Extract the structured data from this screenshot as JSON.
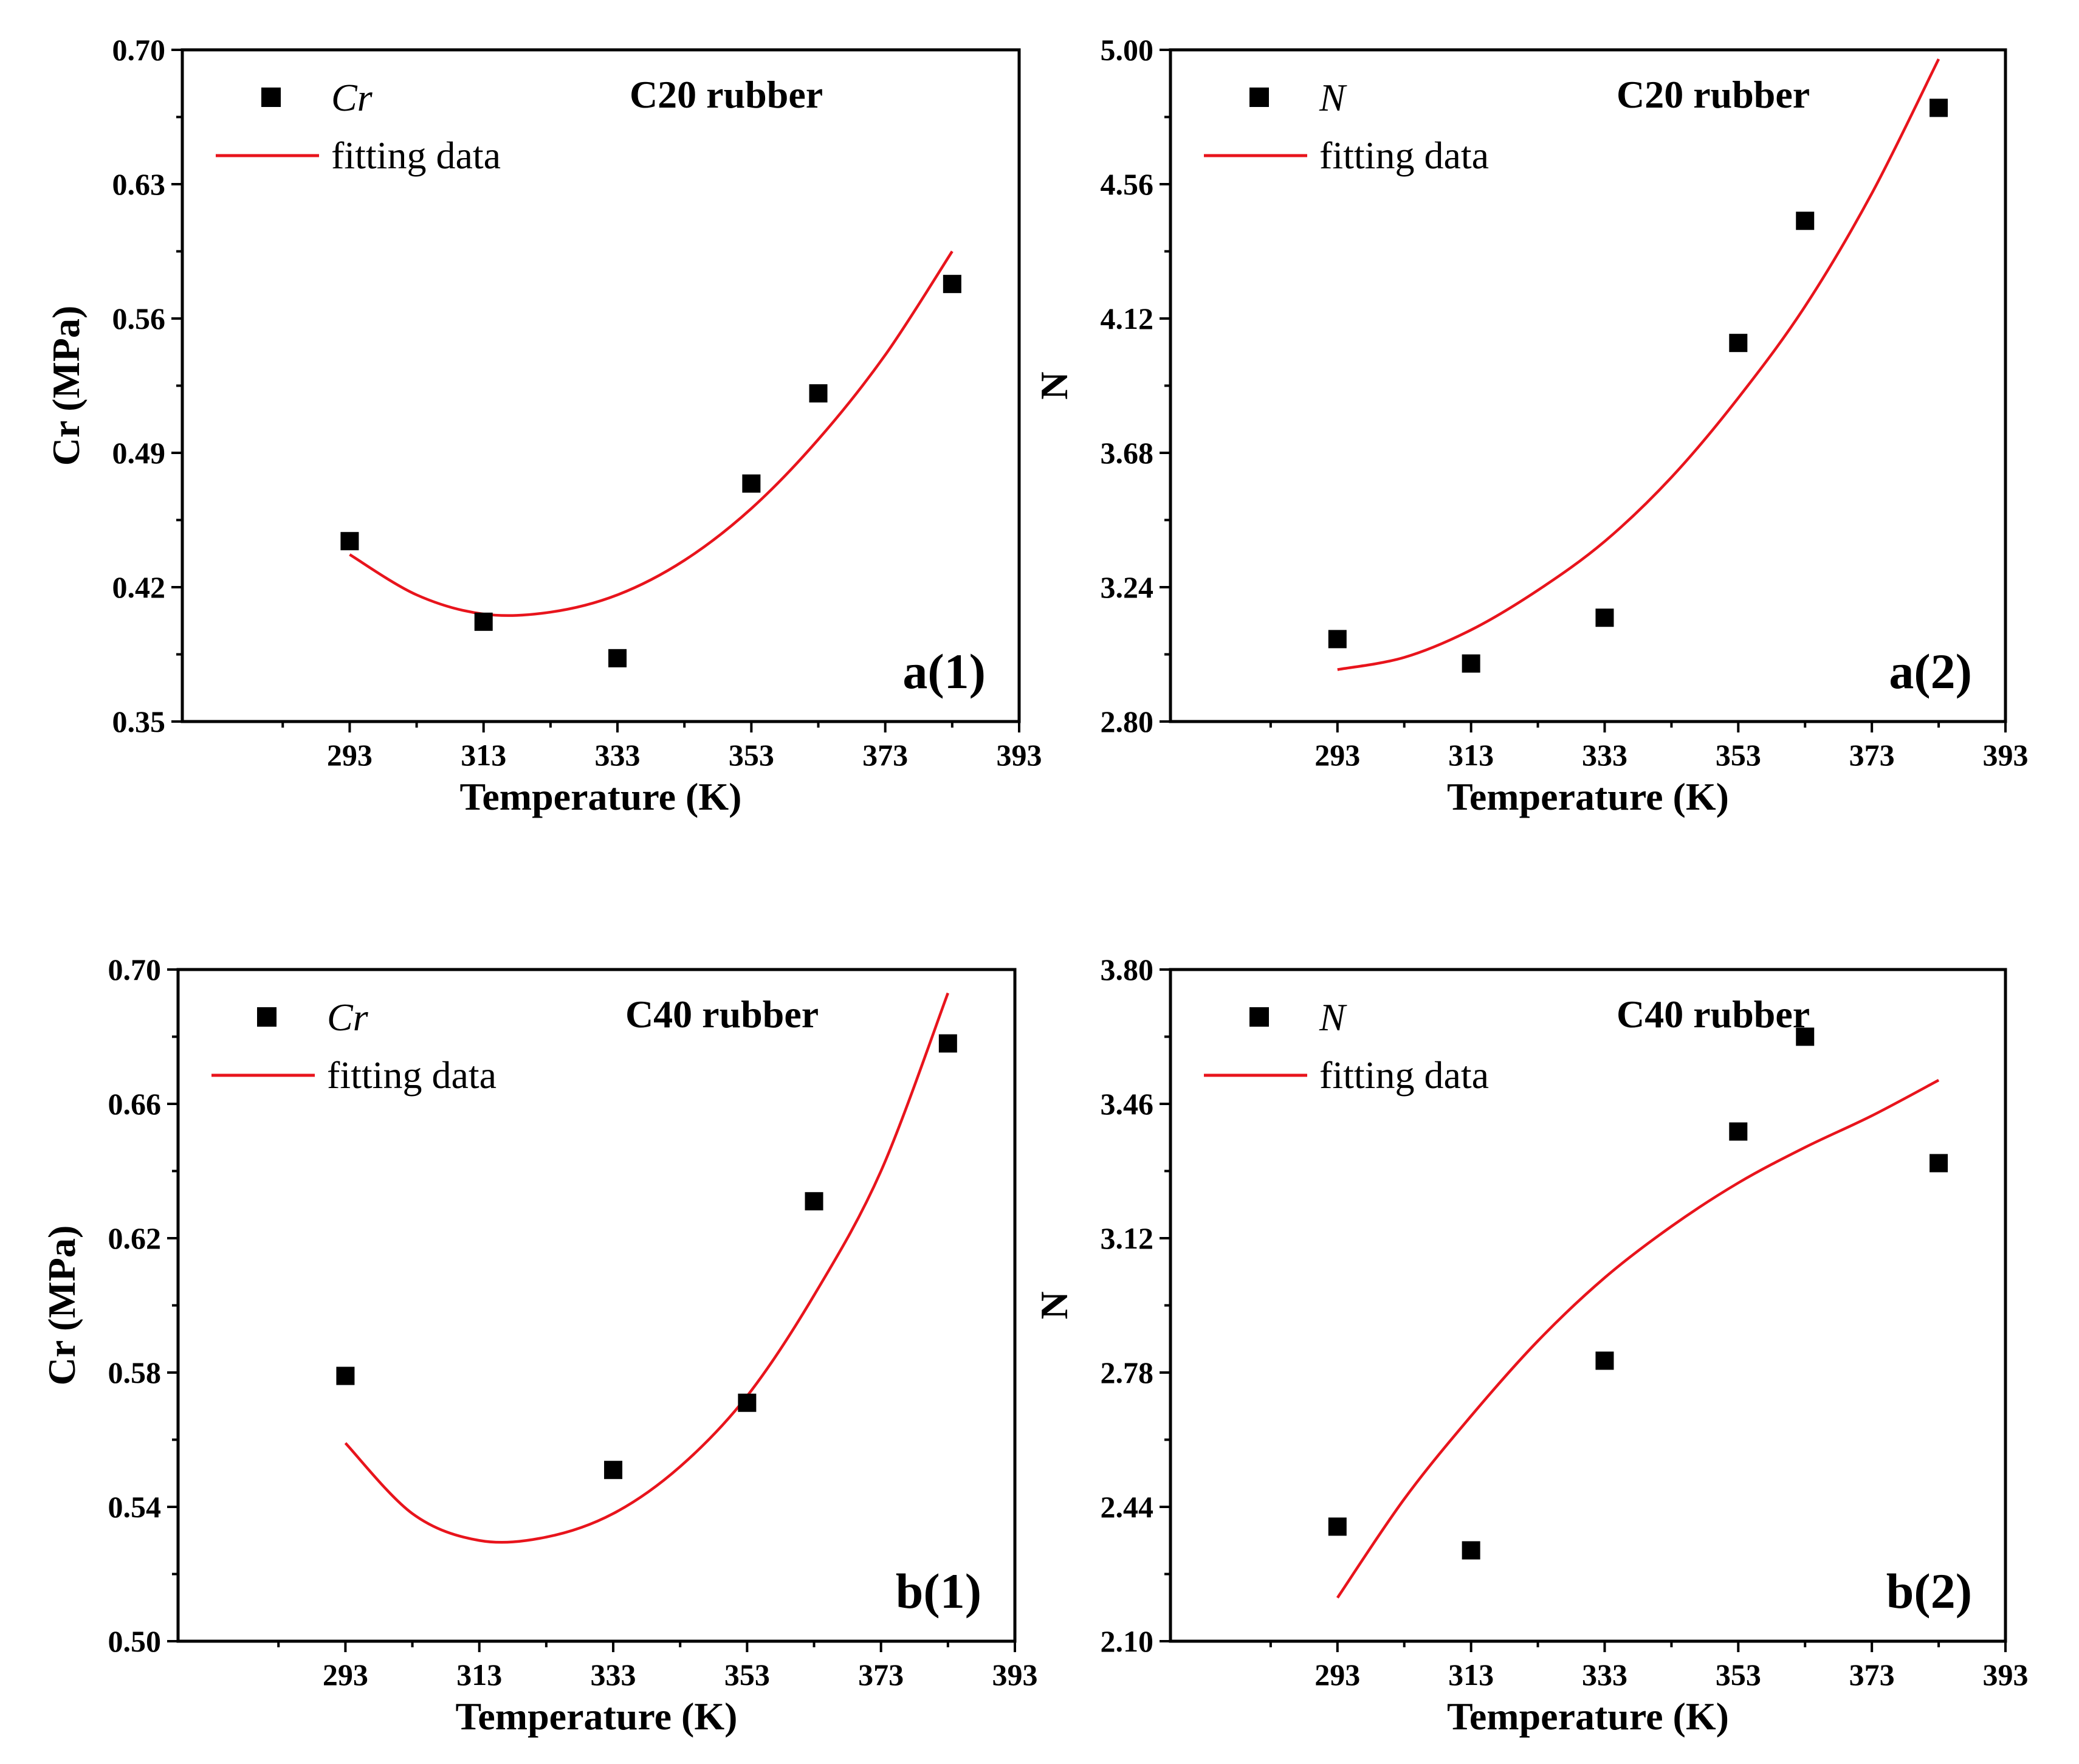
{
  "chart_data": [
    {
      "id": "a1",
      "type": "scatter",
      "title": "C20 rubber",
      "panel_label": "a(1)",
      "xlabel": "Temperature (K)",
      "ylabel": "Cr (MPa)",
      "xlim": [
        268,
        393
      ],
      "ylim": [
        0.35,
        0.7
      ],
      "xticks": [
        293,
        313,
        333,
        353,
        373,
        393
      ],
      "yticks": [
        "0.35",
        "0.42",
        "0.49",
        "0.56",
        "0.63",
        "0.70"
      ],
      "legend": {
        "marker_label": "Cr",
        "line_label": "fitting data",
        "position": "top-left"
      },
      "series": [
        {
          "name": "Cr",
          "kind": "markers",
          "x": [
            293,
            313,
            333,
            353,
            363,
            383
          ],
          "y": [
            0.444,
            0.402,
            0.383,
            0.474,
            0.521,
            0.578
          ]
        },
        {
          "name": "fitting data",
          "kind": "line",
          "x": [
            293,
            303,
            313,
            323,
            333,
            343,
            353,
            363,
            373,
            383
          ],
          "y": [
            0.437,
            0.416,
            0.406,
            0.407,
            0.416,
            0.434,
            0.461,
            0.497,
            0.541,
            0.595
          ]
        }
      ],
      "colors": {
        "marker": "#000000",
        "line": "#e8141c"
      }
    },
    {
      "id": "a2",
      "type": "scatter",
      "title": "C20 rubber",
      "panel_label": "a(2)",
      "xlabel": "Temperature (K)",
      "ylabel": "N",
      "xlim": [
        268,
        393
      ],
      "ylim": [
        2.8,
        5.0
      ],
      "xticks": [
        293,
        313,
        333,
        353,
        373,
        393
      ],
      "yticks": [
        "2.80",
        "3.24",
        "3.68",
        "4.12",
        "4.56",
        "5.00"
      ],
      "legend": {
        "marker_label": "N",
        "line_label": "fitting data",
        "position": "top-left"
      },
      "series": [
        {
          "name": "N",
          "kind": "markers",
          "x": [
            293,
            313,
            333,
            353,
            363,
            383
          ],
          "y": [
            3.07,
            2.99,
            3.14,
            4.04,
            4.44,
            4.81
          ]
        },
        {
          "name": "fitting data",
          "kind": "line",
          "x": [
            293,
            303,
            313,
            323,
            333,
            343,
            353,
            363,
            373,
            383
          ],
          "y": [
            2.97,
            3.01,
            3.1,
            3.23,
            3.39,
            3.6,
            3.86,
            4.16,
            4.53,
            4.97
          ]
        }
      ],
      "colors": {
        "marker": "#000000",
        "line": "#e8141c"
      }
    },
    {
      "id": "b1",
      "type": "scatter",
      "title": "C40 rubber",
      "panel_label": "b(1)",
      "xlabel": "Temperature (K)",
      "ylabel": "Cr (MPa)",
      "xlim": [
        268,
        393
      ],
      "ylim": [
        0.5,
        0.7
      ],
      "xticks": [
        293,
        313,
        333,
        353,
        373,
        393
      ],
      "yticks": [
        "0.50",
        "0.54",
        "0.58",
        "0.62",
        "0.66",
        "0.70"
      ],
      "legend": {
        "marker_label": "Cr",
        "line_label": "fitting data",
        "position": "top-left"
      },
      "series": [
        {
          "name": "Cr",
          "kind": "markers",
          "x": [
            293,
            333,
            353,
            363,
            383
          ],
          "y": [
            0.579,
            0.551,
            0.571,
            0.631,
            0.678
          ]
        },
        {
          "name": "fitting data",
          "kind": "line",
          "x": [
            293,
            303,
            313,
            323,
            333,
            343,
            353,
            363,
            373,
            383
          ],
          "y": [
            0.559,
            0.538,
            0.53,
            0.531,
            0.538,
            0.552,
            0.573,
            0.603,
            0.64,
            0.693
          ]
        }
      ],
      "colors": {
        "marker": "#000000",
        "line": "#e8141c"
      }
    },
    {
      "id": "b2",
      "type": "scatter",
      "title": "C40 rubber",
      "panel_label": "b(2)",
      "xlabel": "Temperature (K)",
      "ylabel": "N",
      "xlim": [
        268,
        393
      ],
      "ylim": [
        2.1,
        3.8
      ],
      "xticks": [
        293,
        313,
        333,
        353,
        373,
        393
      ],
      "yticks": [
        "2.10",
        "2.44",
        "2.78",
        "3.12",
        "3.46",
        "3.80"
      ],
      "legend": {
        "marker_label": "N",
        "line_label": "fitting data",
        "position": "top-left"
      },
      "series": [
        {
          "name": "N",
          "kind": "markers",
          "x": [
            293,
            313,
            333,
            353,
            363,
            383
          ],
          "y": [
            2.39,
            2.33,
            2.81,
            3.39,
            3.63,
            3.31
          ]
        },
        {
          "name": "fitting data",
          "kind": "line",
          "x": [
            293,
            303,
            313,
            323,
            333,
            343,
            353,
            363,
            373,
            383
          ],
          "y": [
            2.21,
            2.46,
            2.67,
            2.86,
            3.02,
            3.15,
            3.26,
            3.35,
            3.43,
            3.52
          ]
        }
      ],
      "colors": {
        "marker": "#000000",
        "line": "#e8141c"
      }
    }
  ]
}
